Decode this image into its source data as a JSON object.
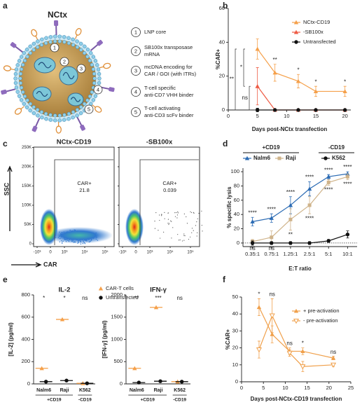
{
  "panel_labels": [
    "a",
    "b",
    "c",
    "d",
    "e",
    "f"
  ],
  "diagram": {
    "title": "NCtx",
    "items": [
      {
        "number": "1",
        "lines": [
          "LNP core"
        ]
      },
      {
        "number": "2",
        "lines": [
          "SB100x transposase",
          "mRNA"
        ]
      },
      {
        "number": "3",
        "lines": [
          "mcDNA encoding for",
          "CAR / GOI (with ITRs)"
        ]
      },
      {
        "number": "4",
        "lines": [
          "T-cell specific",
          "anti-CD7 VHH binder"
        ]
      },
      {
        "number": "5",
        "lines": [
          "T-cell activating",
          "anti-CD3 scFv binder"
        ]
      }
    ]
  },
  "flow": {
    "plots": [
      {
        "title": "NCtx-CD19",
        "gate_label": "CAR+",
        "gate_value": "21.8"
      },
      {
        "title": "-SB100x",
        "gate_label": "CAR+",
        "gate_value": "0.039"
      }
    ],
    "y_label": "SSC",
    "x_label": "CAR",
    "yticks": [
      "0",
      "50K",
      "100K",
      "150K",
      "200K",
      "250K"
    ],
    "xticks": [
      "-10³",
      "0",
      "10³",
      "10⁴",
      "10⁵"
    ]
  },
  "chart_data": [
    {
      "type": "line",
      "ylabel": "%CAR+",
      "xlabel": "Days post-NCtx transfection",
      "x": [
        5,
        8,
        12,
        15,
        20
      ],
      "xlim": [
        0,
        21
      ],
      "xticks": [
        0,
        5,
        10,
        15,
        20
      ],
      "ylim": [
        0,
        60
      ],
      "yticks": [
        0,
        20,
        40,
        60
      ],
      "legend": "upper right",
      "series": [
        {
          "name": "NCtx-CD19",
          "color": "#f5a04a",
          "marker": "triangle",
          "values": [
            36,
            22,
            17,
            11,
            11
          ],
          "errors": [
            6,
            5,
            4,
            3,
            3
          ],
          "stars": [
            null,
            "**",
            "*",
            "*",
            "*"
          ]
        },
        {
          "name": "-SB100x",
          "color": "#ee5a43",
          "marker": "triangle",
          "values": [
            14,
            0,
            0,
            0,
            0
          ],
          "errors": [
            11,
            0,
            0,
            0,
            0
          ]
        },
        {
          "name": "Untransfected",
          "color": "#111111",
          "marker": "circle",
          "values": [
            0,
            0,
            0,
            0,
            0
          ],
          "errors": [
            1,
            0,
            0,
            0,
            0
          ]
        }
      ],
      "brackets": [
        "**",
        "*",
        "ns"
      ]
    },
    {
      "type": "line",
      "ylabel": "% specific lysis",
      "xlabel": "E:T ratio",
      "categories": [
        "0.35:1",
        "0.75:1",
        "1.25:1",
        "2.5:1",
        "5:1",
        "10:1"
      ],
      "ylim": [
        -5,
        105
      ],
      "yticks": [
        0,
        20,
        40,
        60,
        80,
        100
      ],
      "hline": 0,
      "legend_groups": [
        "+CD19",
        "-CD19"
      ],
      "series": [
        {
          "name": "Nalm6",
          "color": "#2a6ab3",
          "marker": "triangle",
          "values": [
            30,
            35,
            53,
            76,
            93,
            97
          ],
          "errors": [
            6,
            6,
            12,
            10,
            3,
            3
          ],
          "stars": [
            "****",
            "****",
            "****",
            "****",
            "****",
            "****"
          ]
        },
        {
          "name": "Raji",
          "color": "#cfb38a",
          "marker": "square",
          "values": [
            2,
            8,
            33,
            53,
            85,
            93
          ],
          "errors": [
            3,
            9,
            15,
            12,
            4,
            4
          ],
          "stars": [
            "ns",
            "ns",
            "**",
            "****",
            "****",
            "****"
          ]
        },
        {
          "name": "K562",
          "color": "#111111",
          "marker": "circle",
          "values": [
            0,
            0,
            0,
            0,
            3,
            12
          ],
          "errors": [
            3,
            2,
            2,
            2,
            2,
            5
          ]
        }
      ]
    },
    {
      "type": "dot",
      "title": "IL-2",
      "ylabel": "[IL-2] (pg/ml)",
      "categories": [
        "Nalm6",
        "Raji",
        "K562"
      ],
      "groups": [
        "+CD19",
        "-CD19"
      ],
      "ylim": [
        0,
        800
      ],
      "yticks": [
        0,
        200,
        400,
        600,
        800
      ],
      "stars": [
        "*",
        "*",
        "ns"
      ],
      "legend": "upper right",
      "series": [
        {
          "name": "CAR-T cells",
          "color": "#f5a04a",
          "marker": "triangle",
          "values": [
            140,
            580,
            5
          ]
        },
        {
          "name": "Untransfected",
          "color": "#111111",
          "marker": "circle",
          "values": [
            20,
            30,
            5
          ]
        }
      ]
    },
    {
      "type": "dot",
      "title": "IFN-γ",
      "ylabel": "[IFN-γ] (pg/ml)",
      "categories": [
        "Nalm6",
        "Raji",
        "K562"
      ],
      "groups": [
        "+CD19",
        "-CD19"
      ],
      "ylim": [
        0,
        2000
      ],
      "yticks": [
        0,
        500,
        1000,
        1500,
        2000
      ],
      "stars": [
        "**",
        "***",
        "ns"
      ],
      "series": [
        {
          "color": "#f5a04a",
          "marker": "triangle",
          "values": [
            350,
            1720,
            50
          ]
        },
        {
          "color": "#111111",
          "marker": "circle",
          "values": [
            30,
            60,
            50
          ]
        }
      ]
    },
    {
      "type": "line",
      "ylabel": "%CAR+",
      "xlabel": "Days post-NCtx-CD19 transfection",
      "x": [
        4,
        7,
        11,
        14,
        21
      ],
      "xlim": [
        0,
        25
      ],
      "xticks": [
        0,
        5,
        10,
        15,
        20,
        25
      ],
      "ylim": [
        0,
        50
      ],
      "yticks": [
        0,
        10,
        20,
        30,
        40,
        50
      ],
      "legend": "upper right",
      "stars": [
        "*",
        "ns",
        "ns",
        "*",
        "ns"
      ],
      "series": [
        {
          "name": "+ pre-activation",
          "color": "#f0a04b",
          "marker": "triangle",
          "values": [
            44,
            28,
            18,
            18,
            14
          ],
          "errors": [
            5,
            5,
            2,
            2,
            1
          ]
        },
        {
          "name": "- pre-activation",
          "color": "#f0a04b",
          "marker": "triangle-down-open",
          "values": [
            19,
            39,
            17,
            9,
            10
          ],
          "errors": [
            5,
            10,
            2,
            3,
            1
          ]
        }
      ]
    }
  ]
}
